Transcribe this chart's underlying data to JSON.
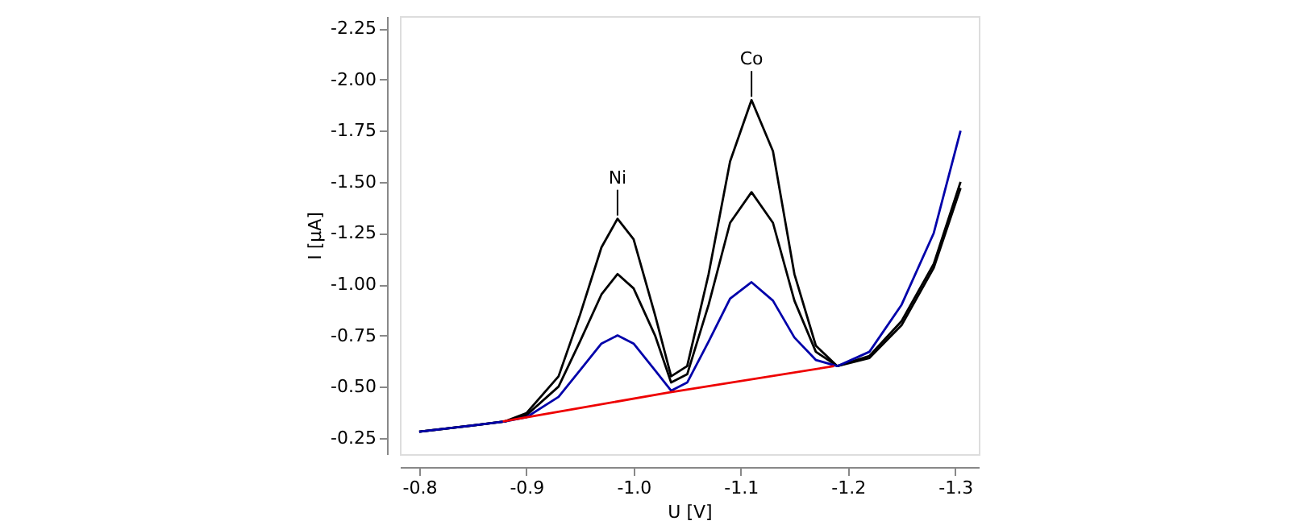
{
  "chart_data": {
    "type": "line",
    "xlabel": "U [V]",
    "ylabel": "I [µA]",
    "xlim": [
      -0.782,
      -1.322
    ],
    "ylim": [
      -0.17,
      -2.31
    ],
    "xticks": [
      {
        "value": -0.8,
        "label": "-0.8"
      },
      {
        "value": -0.9,
        "label": "-0.9"
      },
      {
        "value": -1.0,
        "label": "-1.0"
      },
      {
        "value": -1.1,
        "label": "-1.1"
      },
      {
        "value": -1.2,
        "label": "-1.2"
      },
      {
        "value": -1.3,
        "label": "-1.3"
      }
    ],
    "yticks": [
      -0.25,
      {
        "value": -0.5,
        "label": "-0.50"
      },
      -0.75,
      {
        "value": -1.0,
        "label": "-1.00"
      },
      -1.25,
      {
        "value": -1.5,
        "label": "-1.50"
      },
      -1.75,
      {
        "value": -2.0,
        "label": "-2.00"
      },
      -2.25
    ],
    "grid": false,
    "line_style": "solid",
    "marker": "none",
    "series": [
      {
        "color": "#000000",
        "x": [
          -0.8,
          -0.85,
          -0.88,
          -0.9,
          -0.93,
          -0.95,
          -0.97,
          -0.985,
          -1.0,
          -1.02,
          -1.035,
          -1.05,
          -1.07,
          -1.09,
          -1.11,
          -1.13,
          -1.15,
          -1.17,
          -1.19,
          -1.22,
          -1.25,
          -1.28,
          -1.305
        ],
        "values": [
          -0.28,
          -0.31,
          -0.33,
          -0.37,
          -0.55,
          -0.85,
          -1.18,
          -1.32,
          -1.22,
          -0.85,
          -0.55,
          -0.6,
          -1.05,
          -1.6,
          -1.9,
          -1.65,
          -1.05,
          -0.7,
          -0.6,
          -0.64,
          -0.8,
          -1.08,
          -1.47
        ]
      },
      {
        "color": "#000000",
        "x": [
          -0.8,
          -0.85,
          -0.88,
          -0.9,
          -0.93,
          -0.95,
          -0.97,
          -0.985,
          -1.0,
          -1.02,
          -1.035,
          -1.05,
          -1.07,
          -1.09,
          -1.11,
          -1.13,
          -1.15,
          -1.17,
          -1.19,
          -1.22,
          -1.25,
          -1.28,
          -1.305
        ],
        "values": [
          -0.28,
          -0.31,
          -0.33,
          -0.36,
          -0.5,
          -0.72,
          -0.95,
          -1.05,
          -0.98,
          -0.75,
          -0.52,
          -0.56,
          -0.9,
          -1.3,
          -1.45,
          -1.3,
          -0.92,
          -0.67,
          -0.6,
          -0.65,
          -0.82,
          -1.1,
          -1.5
        ]
      },
      {
        "color": "#0000aa",
        "x": [
          -0.8,
          -0.85,
          -0.88,
          -0.9,
          -0.93,
          -0.95,
          -0.97,
          -0.985,
          -1.0,
          -1.02,
          -1.035,
          -1.05,
          -1.07,
          -1.09,
          -1.11,
          -1.13,
          -1.15,
          -1.17,
          -1.19,
          -1.22,
          -1.25,
          -1.28,
          -1.305
        ],
        "values": [
          -0.28,
          -0.31,
          -0.33,
          -0.35,
          -0.45,
          -0.58,
          -0.71,
          -0.75,
          -0.71,
          -0.58,
          -0.48,
          -0.52,
          -0.72,
          -0.93,
          -1.01,
          -0.92,
          -0.74,
          -0.63,
          -0.6,
          -0.67,
          -0.9,
          -1.25,
          -1.75
        ]
      },
      {
        "color": "#ee0000",
        "x": [
          -0.878,
          -1.032,
          -1.187
        ],
        "values": [
          -0.33,
          -0.47,
          -0.6
        ]
      }
    ],
    "annotations": [
      {
        "text": "Ni",
        "x": -0.985,
        "y": -1.32
      },
      {
        "text": "Co",
        "x": -1.11,
        "y": -1.9
      }
    ]
  }
}
